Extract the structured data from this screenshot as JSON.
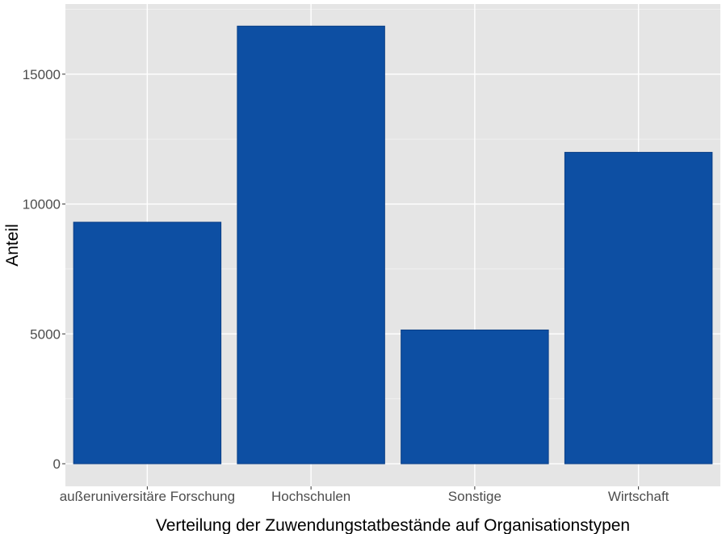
{
  "chart_data": {
    "type": "bar",
    "categories": [
      "außeruniversitäre Forschung",
      "Hochschulen",
      "Sonstige",
      "Wirtschaft"
    ],
    "values": [
      9300,
      16850,
      5150,
      11990
    ],
    "xlabel": "Verteilung der Zuwendungstatbestände auf Organisationstypen",
    "ylabel": "Anteil",
    "ylim": [
      -870,
      17700
    ],
    "yticks": [
      0,
      5000,
      10000,
      15000
    ],
    "ytick_labels": [
      "0",
      "5000",
      "10000",
      "15000"
    ],
    "grid": true,
    "legend": "none",
    "colors": {
      "bar_fill": "#0d4fa3",
      "bar_stroke": "#0b3f86",
      "panel_bg": "#e5e5e5",
      "grid_major": "#ffffff",
      "grid_minor": "#f2f2f2",
      "tick_text": "#4d4d4d",
      "title_text": "#000000"
    }
  }
}
